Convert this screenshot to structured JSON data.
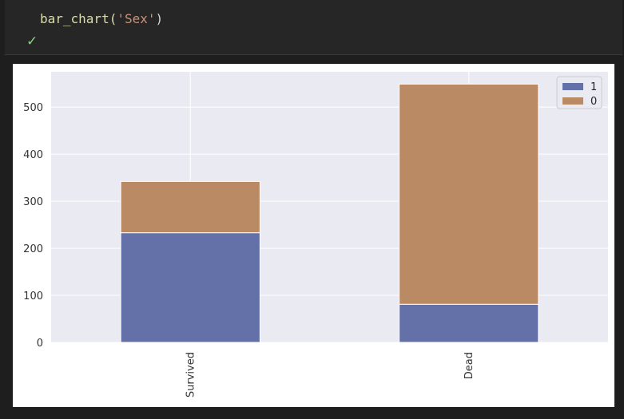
{
  "cell": {
    "code_fn": "bar_chart(",
    "code_arg": "'Sex'",
    "code_close": ")",
    "status": "✓"
  },
  "chart_data": {
    "type": "bar",
    "stacked": true,
    "categories": [
      "Survived",
      "Dead"
    ],
    "series": [
      {
        "name": "1",
        "values": [
          233,
          81
        ],
        "color": "#6471a8"
      },
      {
        "name": "0",
        "values": [
          109,
          468
        ],
        "color": "#b98a63"
      }
    ],
    "title": "",
    "xlabel": "",
    "ylabel": "",
    "ylim": [
      0,
      575
    ],
    "yticks": [
      0,
      100,
      200,
      300,
      400,
      500
    ],
    "grid": true,
    "legend_position": "top-right",
    "legend_order": [
      "1",
      "0"
    ],
    "background": "#eaeaf2"
  }
}
